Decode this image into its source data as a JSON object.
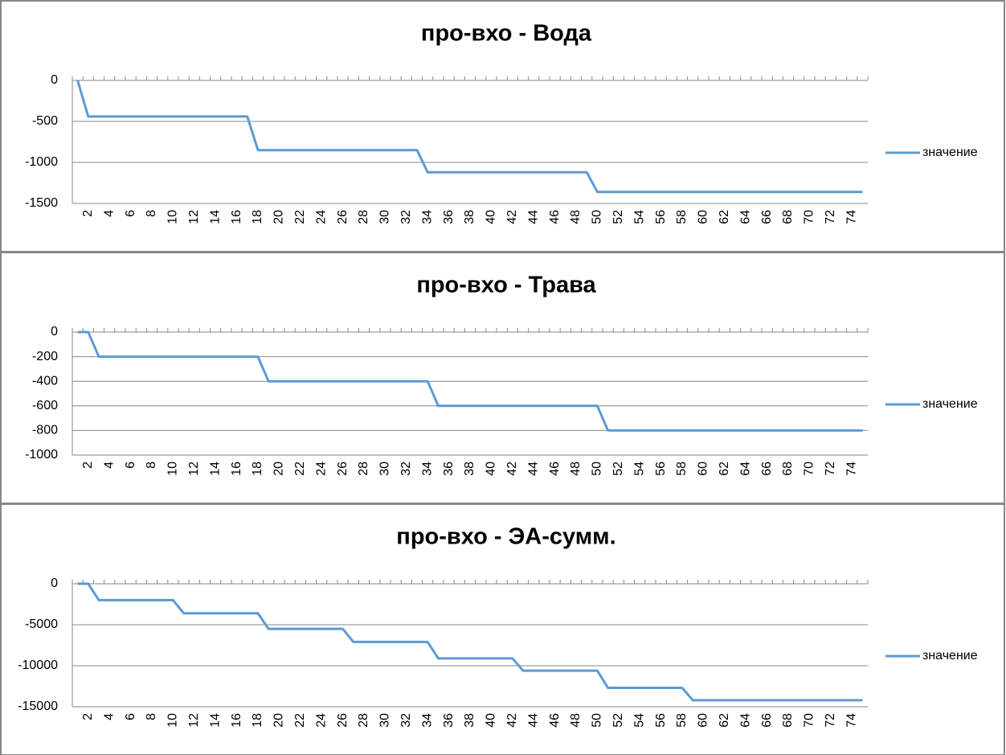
{
  "chart_data": [
    {
      "type": "line",
      "title": "про-вхо - Вода",
      "categories": [
        null,
        "2",
        null,
        "4",
        null,
        "6",
        null,
        "8",
        null,
        "10",
        null,
        "12",
        null,
        "14",
        null,
        "16",
        null,
        "18",
        null,
        "20",
        null,
        "22",
        null,
        "24",
        null,
        "26",
        null,
        "28",
        null,
        "30",
        null,
        "32",
        null,
        "34",
        null,
        "36",
        null,
        "38",
        null,
        "40",
        null,
        "42",
        null,
        "44",
        null,
        "46",
        null,
        "48",
        null,
        "50",
        null,
        "52",
        null,
        "54",
        null,
        "56",
        null,
        "58",
        null,
        "60",
        null,
        "62",
        null,
        "64",
        null,
        "66",
        null,
        "68",
        null,
        "70",
        null,
        "72",
        null,
        "74",
        null
      ],
      "series": [
        {
          "name": "значение",
          "color": "#5b9bd5",
          "values": [
            0,
            -440,
            -440,
            -440,
            -440,
            -440,
            -440,
            -440,
            -440,
            -440,
            -440,
            -440,
            -440,
            -440,
            -440,
            -440,
            -440,
            -850,
            -850,
            -850,
            -850,
            -850,
            -850,
            -850,
            -850,
            -850,
            -850,
            -850,
            -850,
            -850,
            -850,
            -850,
            -850,
            -1120,
            -1120,
            -1120,
            -1120,
            -1120,
            -1120,
            -1120,
            -1120,
            -1120,
            -1120,
            -1120,
            -1120,
            -1120,
            -1120,
            -1120,
            -1120,
            -1360,
            -1360,
            -1360,
            -1360,
            -1360,
            -1360,
            -1360,
            -1360,
            -1360,
            -1360,
            -1360,
            -1360,
            -1360,
            -1360,
            -1360,
            -1360,
            -1360,
            -1360,
            -1360,
            -1360,
            -1360,
            -1360,
            -1360,
            -1360,
            -1360,
            -1360
          ]
        }
      ],
      "ylim": [
        -1500,
        0
      ],
      "yticks": [
        0,
        -500,
        -1000,
        -1500
      ],
      "grid": true,
      "legend": "right"
    },
    {
      "type": "line",
      "title": "про-вхо - Трава",
      "categories": [
        null,
        "2",
        null,
        "4",
        null,
        "6",
        null,
        "8",
        null,
        "10",
        null,
        "12",
        null,
        "14",
        null,
        "16",
        null,
        "18",
        null,
        "20",
        null,
        "22",
        null,
        "24",
        null,
        "26",
        null,
        "28",
        null,
        "30",
        null,
        "32",
        null,
        "34",
        null,
        "36",
        null,
        "38",
        null,
        "40",
        null,
        "42",
        null,
        "44",
        null,
        "46",
        null,
        "48",
        null,
        "50",
        null,
        "52",
        null,
        "54",
        null,
        "56",
        null,
        "58",
        null,
        "60",
        null,
        "62",
        null,
        "64",
        null,
        "66",
        null,
        "68",
        null,
        "70",
        null,
        "72",
        null,
        "74",
        null
      ],
      "series": [
        {
          "name": "значение",
          "color": "#5b9bd5",
          "values": [
            0,
            0,
            -200,
            -200,
            -200,
            -200,
            -200,
            -200,
            -200,
            -200,
            -200,
            -200,
            -200,
            -200,
            -200,
            -200,
            -200,
            -200,
            -400,
            -400,
            -400,
            -400,
            -400,
            -400,
            -400,
            -400,
            -400,
            -400,
            -400,
            -400,
            -400,
            -400,
            -400,
            -400,
            -600,
            -600,
            -600,
            -600,
            -600,
            -600,
            -600,
            -600,
            -600,
            -600,
            -600,
            -600,
            -600,
            -600,
            -600,
            -600,
            -800,
            -800,
            -800,
            -800,
            -800,
            -800,
            -800,
            -800,
            -800,
            -800,
            -800,
            -800,
            -800,
            -800,
            -800,
            -800,
            -800,
            -800,
            -800,
            -800,
            -800,
            -800,
            -800,
            -800,
            -800
          ]
        }
      ],
      "ylim": [
        -1000,
        0
      ],
      "yticks": [
        0,
        -200,
        -400,
        -600,
        -800,
        -1000
      ],
      "grid": true,
      "legend": "right"
    },
    {
      "type": "line",
      "title": "про-вхо - ЭА-сумм.",
      "categories": [
        null,
        "2",
        null,
        "4",
        null,
        "6",
        null,
        "8",
        null,
        "10",
        null,
        "12",
        null,
        "14",
        null,
        "16",
        null,
        "18",
        null,
        "20",
        null,
        "22",
        null,
        "24",
        null,
        "26",
        null,
        "28",
        null,
        "30",
        null,
        "32",
        null,
        "34",
        null,
        "36",
        null,
        "38",
        null,
        "40",
        null,
        "42",
        null,
        "44",
        null,
        "46",
        null,
        "48",
        null,
        "50",
        null,
        "52",
        null,
        "54",
        null,
        "56",
        null,
        "58",
        null,
        "60",
        null,
        "62",
        null,
        "64",
        null,
        "66",
        null,
        "68",
        null,
        "70",
        null,
        "72",
        null,
        "74",
        null
      ],
      "series": [
        {
          "name": "значение",
          "color": "#5b9bd5",
          "values": [
            0,
            0,
            -2000,
            -2000,
            -2000,
            -2000,
            -2000,
            -2000,
            -2000,
            -2000,
            -3600,
            -3600,
            -3600,
            -3600,
            -3600,
            -3600,
            -3600,
            -3600,
            -5500,
            -5500,
            -5500,
            -5500,
            -5500,
            -5500,
            -5500,
            -5500,
            -7100,
            -7100,
            -7100,
            -7100,
            -7100,
            -7100,
            -7100,
            -7100,
            -9100,
            -9100,
            -9100,
            -9100,
            -9100,
            -9100,
            -9100,
            -9100,
            -10600,
            -10600,
            -10600,
            -10600,
            -10600,
            -10600,
            -10600,
            -10600,
            -12700,
            -12700,
            -12700,
            -12700,
            -12700,
            -12700,
            -12700,
            -12700,
            -14200,
            -14200,
            -14200,
            -14200,
            -14200,
            -14200,
            -14200,
            -14200,
            -14200,
            -14200,
            -14200,
            -14200,
            -14200,
            -14200,
            -14200,
            -14200,
            -14200
          ]
        }
      ],
      "ylim": [
        -15000,
        0
      ],
      "yticks": [
        0,
        -5000,
        -10000,
        -15000
      ],
      "grid": true,
      "legend": "right"
    }
  ]
}
